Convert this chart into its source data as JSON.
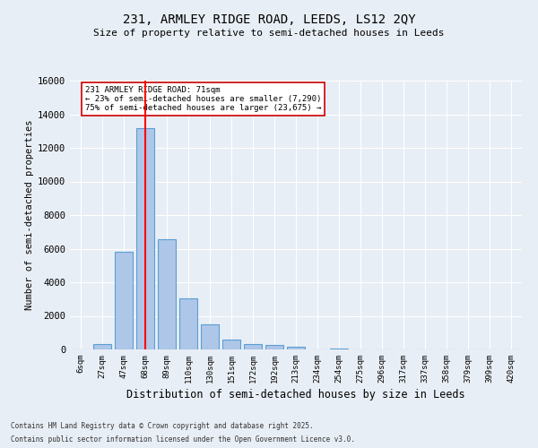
{
  "title_line1": "231, ARMLEY RIDGE ROAD, LEEDS, LS12 2QY",
  "title_line2": "Size of property relative to semi-detached houses in Leeds",
  "xlabel": "Distribution of semi-detached houses by size in Leeds",
  "ylabel": "Number of semi-detached properties",
  "categories": [
    "6sqm",
    "27sqm",
    "47sqm",
    "68sqm",
    "89sqm",
    "110sqm",
    "130sqm",
    "151sqm",
    "172sqm",
    "192sqm",
    "213sqm",
    "234sqm",
    "254sqm",
    "275sqm",
    "296sqm",
    "317sqm",
    "337sqm",
    "358sqm",
    "379sqm",
    "399sqm",
    "420sqm"
  ],
  "values": [
    0,
    300,
    5800,
    13200,
    6550,
    3050,
    1520,
    580,
    320,
    250,
    150,
    0,
    80,
    0,
    0,
    0,
    0,
    0,
    0,
    0,
    0
  ],
  "bar_color": "#aec6e8",
  "bar_edge_color": "#5a9fd4",
  "red_line_x": 3,
  "annotation_text": "231 ARMLEY RIDGE ROAD: 71sqm\n← 23% of semi-detached houses are smaller (7,290)\n75% of semi-detached houses are larger (23,675) →",
  "annotation_box_color": "#ffffff",
  "annotation_box_edge": "#cc0000",
  "ylim": [
    0,
    16000
  ],
  "yticks": [
    0,
    2000,
    4000,
    6000,
    8000,
    10000,
    12000,
    14000,
    16000
  ],
  "background_color": "#e8eef5",
  "grid_color": "#ffffff",
  "footer_line1": "Contains HM Land Registry data © Crown copyright and database right 2025.",
  "footer_line2": "Contains public sector information licensed under the Open Government Licence v3.0."
}
